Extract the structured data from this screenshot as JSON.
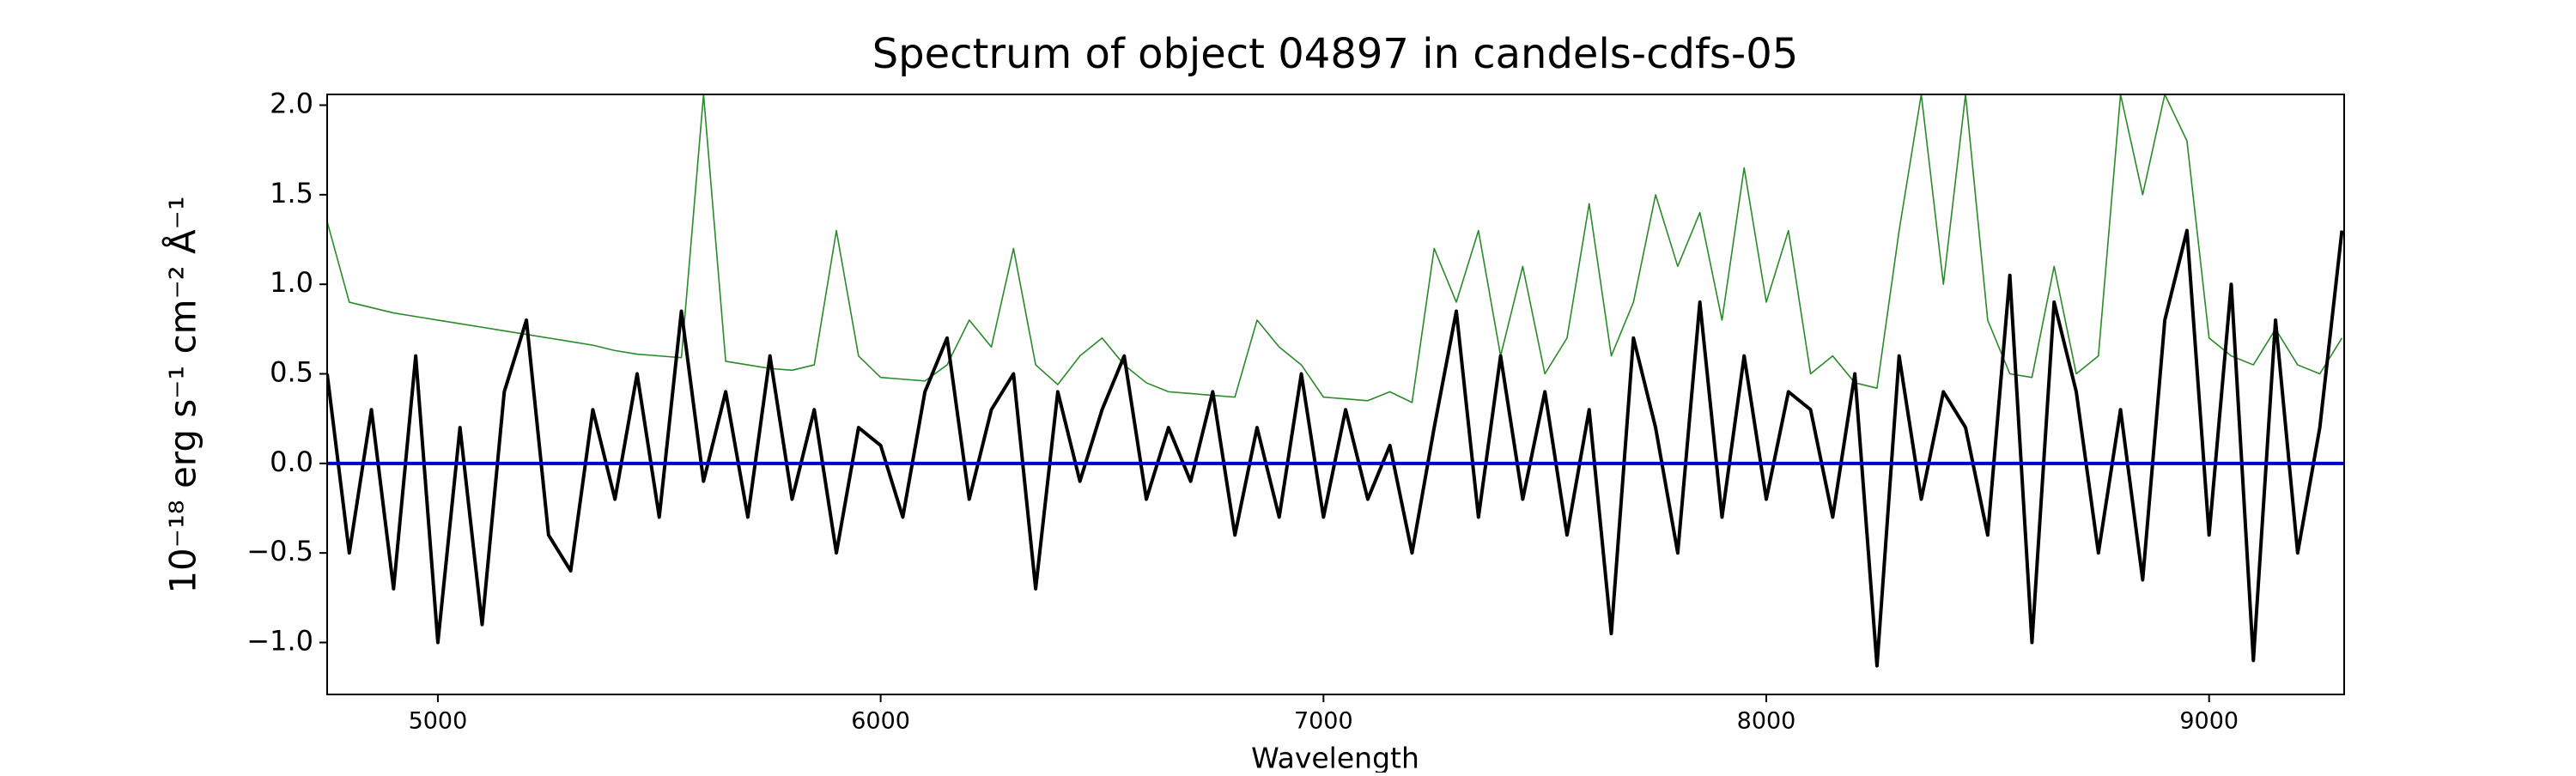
{
  "chart_data": {
    "type": "line",
    "title": "Spectrum of object 04897 in candels-cdfs-05",
    "xlabel": "Wavelength",
    "ylabel": "10⁻¹⁸ erg s⁻¹ cm⁻² Å⁻¹",
    "xlim": [
      4750,
      9305
    ],
    "ylim": [
      -1.29,
      2.06
    ],
    "xticks": [
      5000,
      6000,
      7000,
      8000,
      9000
    ],
    "yticks": [
      {
        "value": -1,
        "label": "−1.0"
      },
      {
        "value": -0.5,
        "label": "−0.5"
      },
      {
        "value": 0,
        "label": "0.0"
      },
      {
        "value": 0.5,
        "label": "0.5"
      },
      {
        "value": 1,
        "label": "1.0"
      },
      {
        "value": 1.5,
        "label": "1.5"
      },
      {
        "value": 2,
        "label": "2.0"
      }
    ],
    "grid": false,
    "hline": {
      "value": 0,
      "color": "#0000cc"
    },
    "x": [
      4750,
      4800,
      4850,
      4900,
      4950,
      5000,
      5050,
      5100,
      5150,
      5200,
      5250,
      5300,
      5350,
      5400,
      5450,
      5500,
      5550,
      5600,
      5650,
      5700,
      5750,
      5800,
      5850,
      5900,
      5950,
      6000,
      6050,
      6100,
      6150,
      6200,
      6250,
      6300,
      6350,
      6400,
      6450,
      6500,
      6550,
      6600,
      6650,
      6700,
      6750,
      6800,
      6850,
      6900,
      6950,
      7000,
      7050,
      7100,
      7150,
      7200,
      7250,
      7300,
      7350,
      7400,
      7450,
      7500,
      7550,
      7600,
      7650,
      7700,
      7750,
      7800,
      7850,
      7900,
      7950,
      8000,
      8050,
      8100,
      8150,
      8200,
      8250,
      8300,
      8350,
      8400,
      8450,
      8500,
      8550,
      8600,
      8650,
      8700,
      8750,
      8800,
      8850,
      8900,
      8950,
      9000,
      9050,
      9100,
      9150,
      9200,
      9250,
      9300
    ],
    "series": [
      {
        "color": "#2a8a2a",
        "width": 1.6,
        "values": [
          1.35,
          0.9,
          0.87,
          0.84,
          0.82,
          0.8,
          0.78,
          0.76,
          0.74,
          0.72,
          0.7,
          0.68,
          0.66,
          0.63,
          0.61,
          0.6,
          0.59,
          2.06,
          0.57,
          0.55,
          0.53,
          0.52,
          0.55,
          1.3,
          0.6,
          0.48,
          0.47,
          0.46,
          0.55,
          0.8,
          0.65,
          1.2,
          0.55,
          0.44,
          0.6,
          0.7,
          0.55,
          0.45,
          0.4,
          0.39,
          0.38,
          0.37,
          0.8,
          0.65,
          0.55,
          0.37,
          0.36,
          0.35,
          0.4,
          0.34,
          1.2,
          0.9,
          1.3,
          0.6,
          1.1,
          0.5,
          0.7,
          1.45,
          0.6,
          0.9,
          1.5,
          1.1,
          1.4,
          0.8,
          1.65,
          0.9,
          1.3,
          0.5,
          0.6,
          0.45,
          0.42,
          1.3,
          2.06,
          1.0,
          2.06,
          0.8,
          0.5,
          0.48,
          1.1,
          0.5,
          0.6,
          2.06,
          1.5,
          2.06,
          1.8,
          0.7,
          0.6,
          0.55,
          0.75,
          0.55,
          0.5,
          0.7
        ]
      },
      {
        "color": "#000000",
        "width": 4,
        "values": [
          0.5,
          -0.5,
          0.3,
          -0.7,
          0.6,
          -1.0,
          0.2,
          -0.9,
          0.4,
          0.8,
          -0.4,
          -0.6,
          0.3,
          -0.2,
          0.5,
          -0.3,
          0.85,
          -0.1,
          0.4,
          -0.3,
          0.6,
          -0.2,
          0.3,
          -0.5,
          0.2,
          0.1,
          -0.3,
          0.4,
          0.7,
          -0.2,
          0.3,
          0.5,
          -0.7,
          0.4,
          -0.1,
          0.3,
          0.6,
          -0.2,
          0.2,
          -0.1,
          0.4,
          -0.4,
          0.2,
          -0.3,
          0.5,
          -0.3,
          0.3,
          -0.2,
          0.1,
          -0.5,
          0.2,
          0.85,
          -0.3,
          0.6,
          -0.2,
          0.4,
          -0.4,
          0.3,
          -0.95,
          0.7,
          0.2,
          -0.5,
          0.9,
          -0.3,
          0.6,
          -0.2,
          0.4,
          0.3,
          -0.3,
          0.5,
          -1.13,
          0.6,
          -0.2,
          0.4,
          0.2,
          -0.4,
          1.05,
          -1.0,
          0.9,
          0.4,
          -0.5,
          0.3,
          -0.65,
          0.8,
          1.3,
          -0.4,
          1.0,
          -1.1,
          0.8,
          -0.5,
          0.2,
          1.3
        ]
      }
    ]
  }
}
